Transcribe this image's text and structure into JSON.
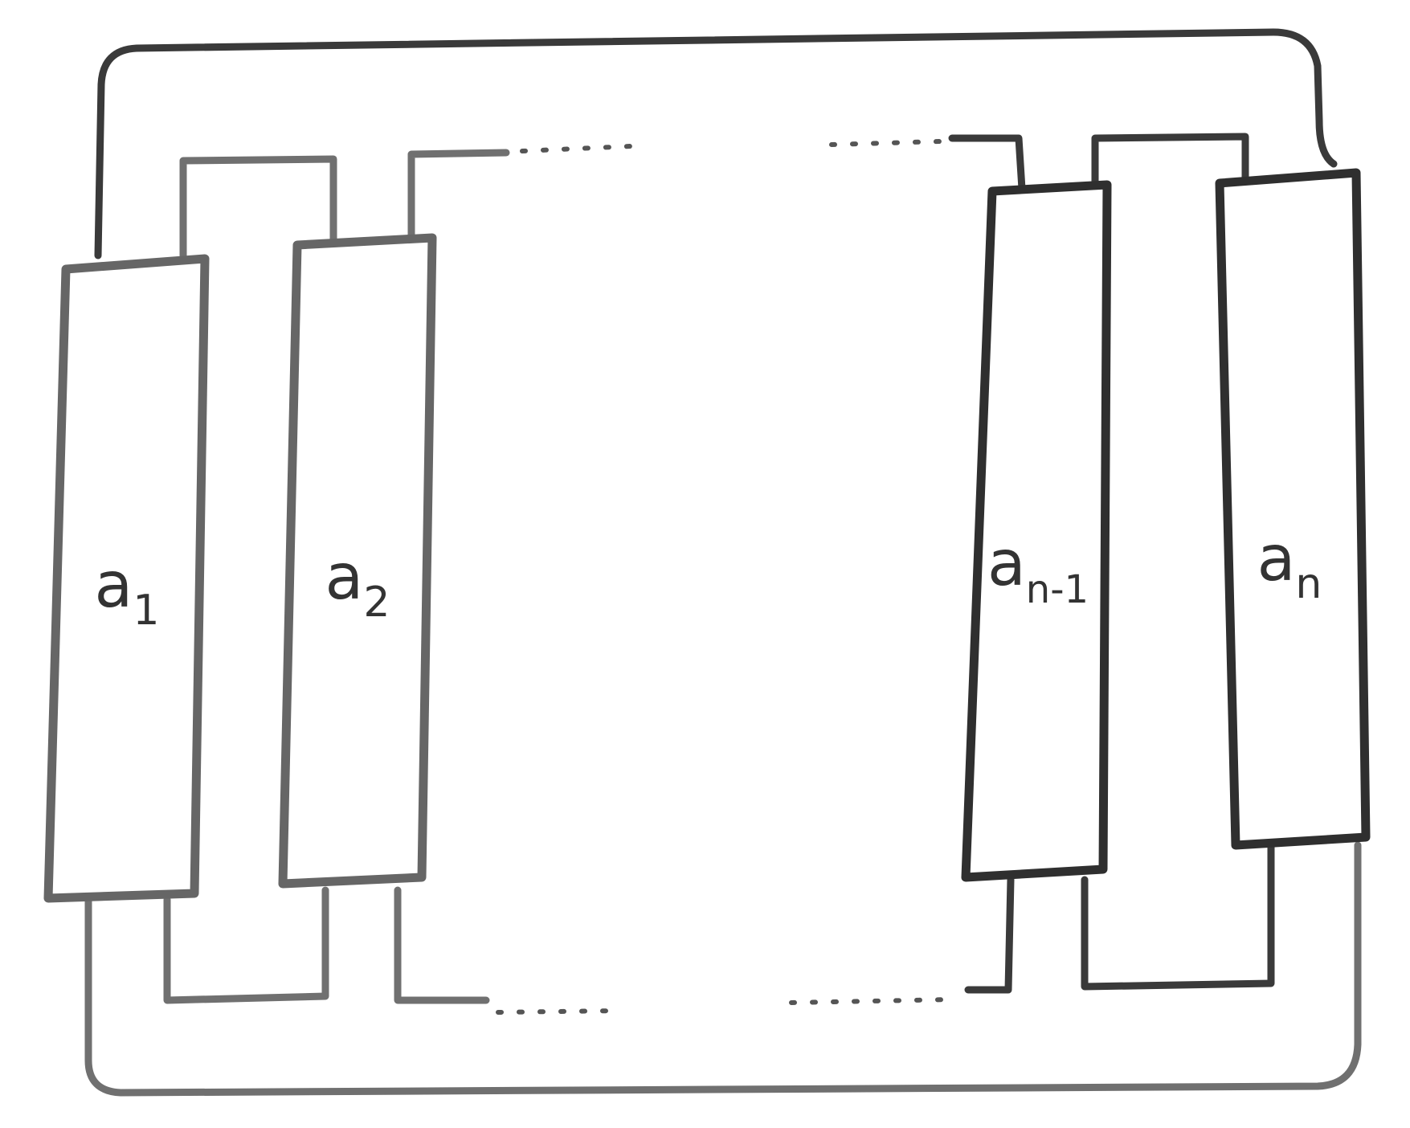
{
  "diagram": {
    "components": [
      {
        "id": "a1",
        "label": "a",
        "subscript": "1"
      },
      {
        "id": "a2",
        "label": "a",
        "subscript": "2"
      },
      {
        "id": "an-1",
        "label": "a",
        "subscript": "n-1"
      },
      {
        "id": "an",
        "label": "a",
        "subscript": "n"
      }
    ],
    "ellipsis": "· · · · ·"
  }
}
